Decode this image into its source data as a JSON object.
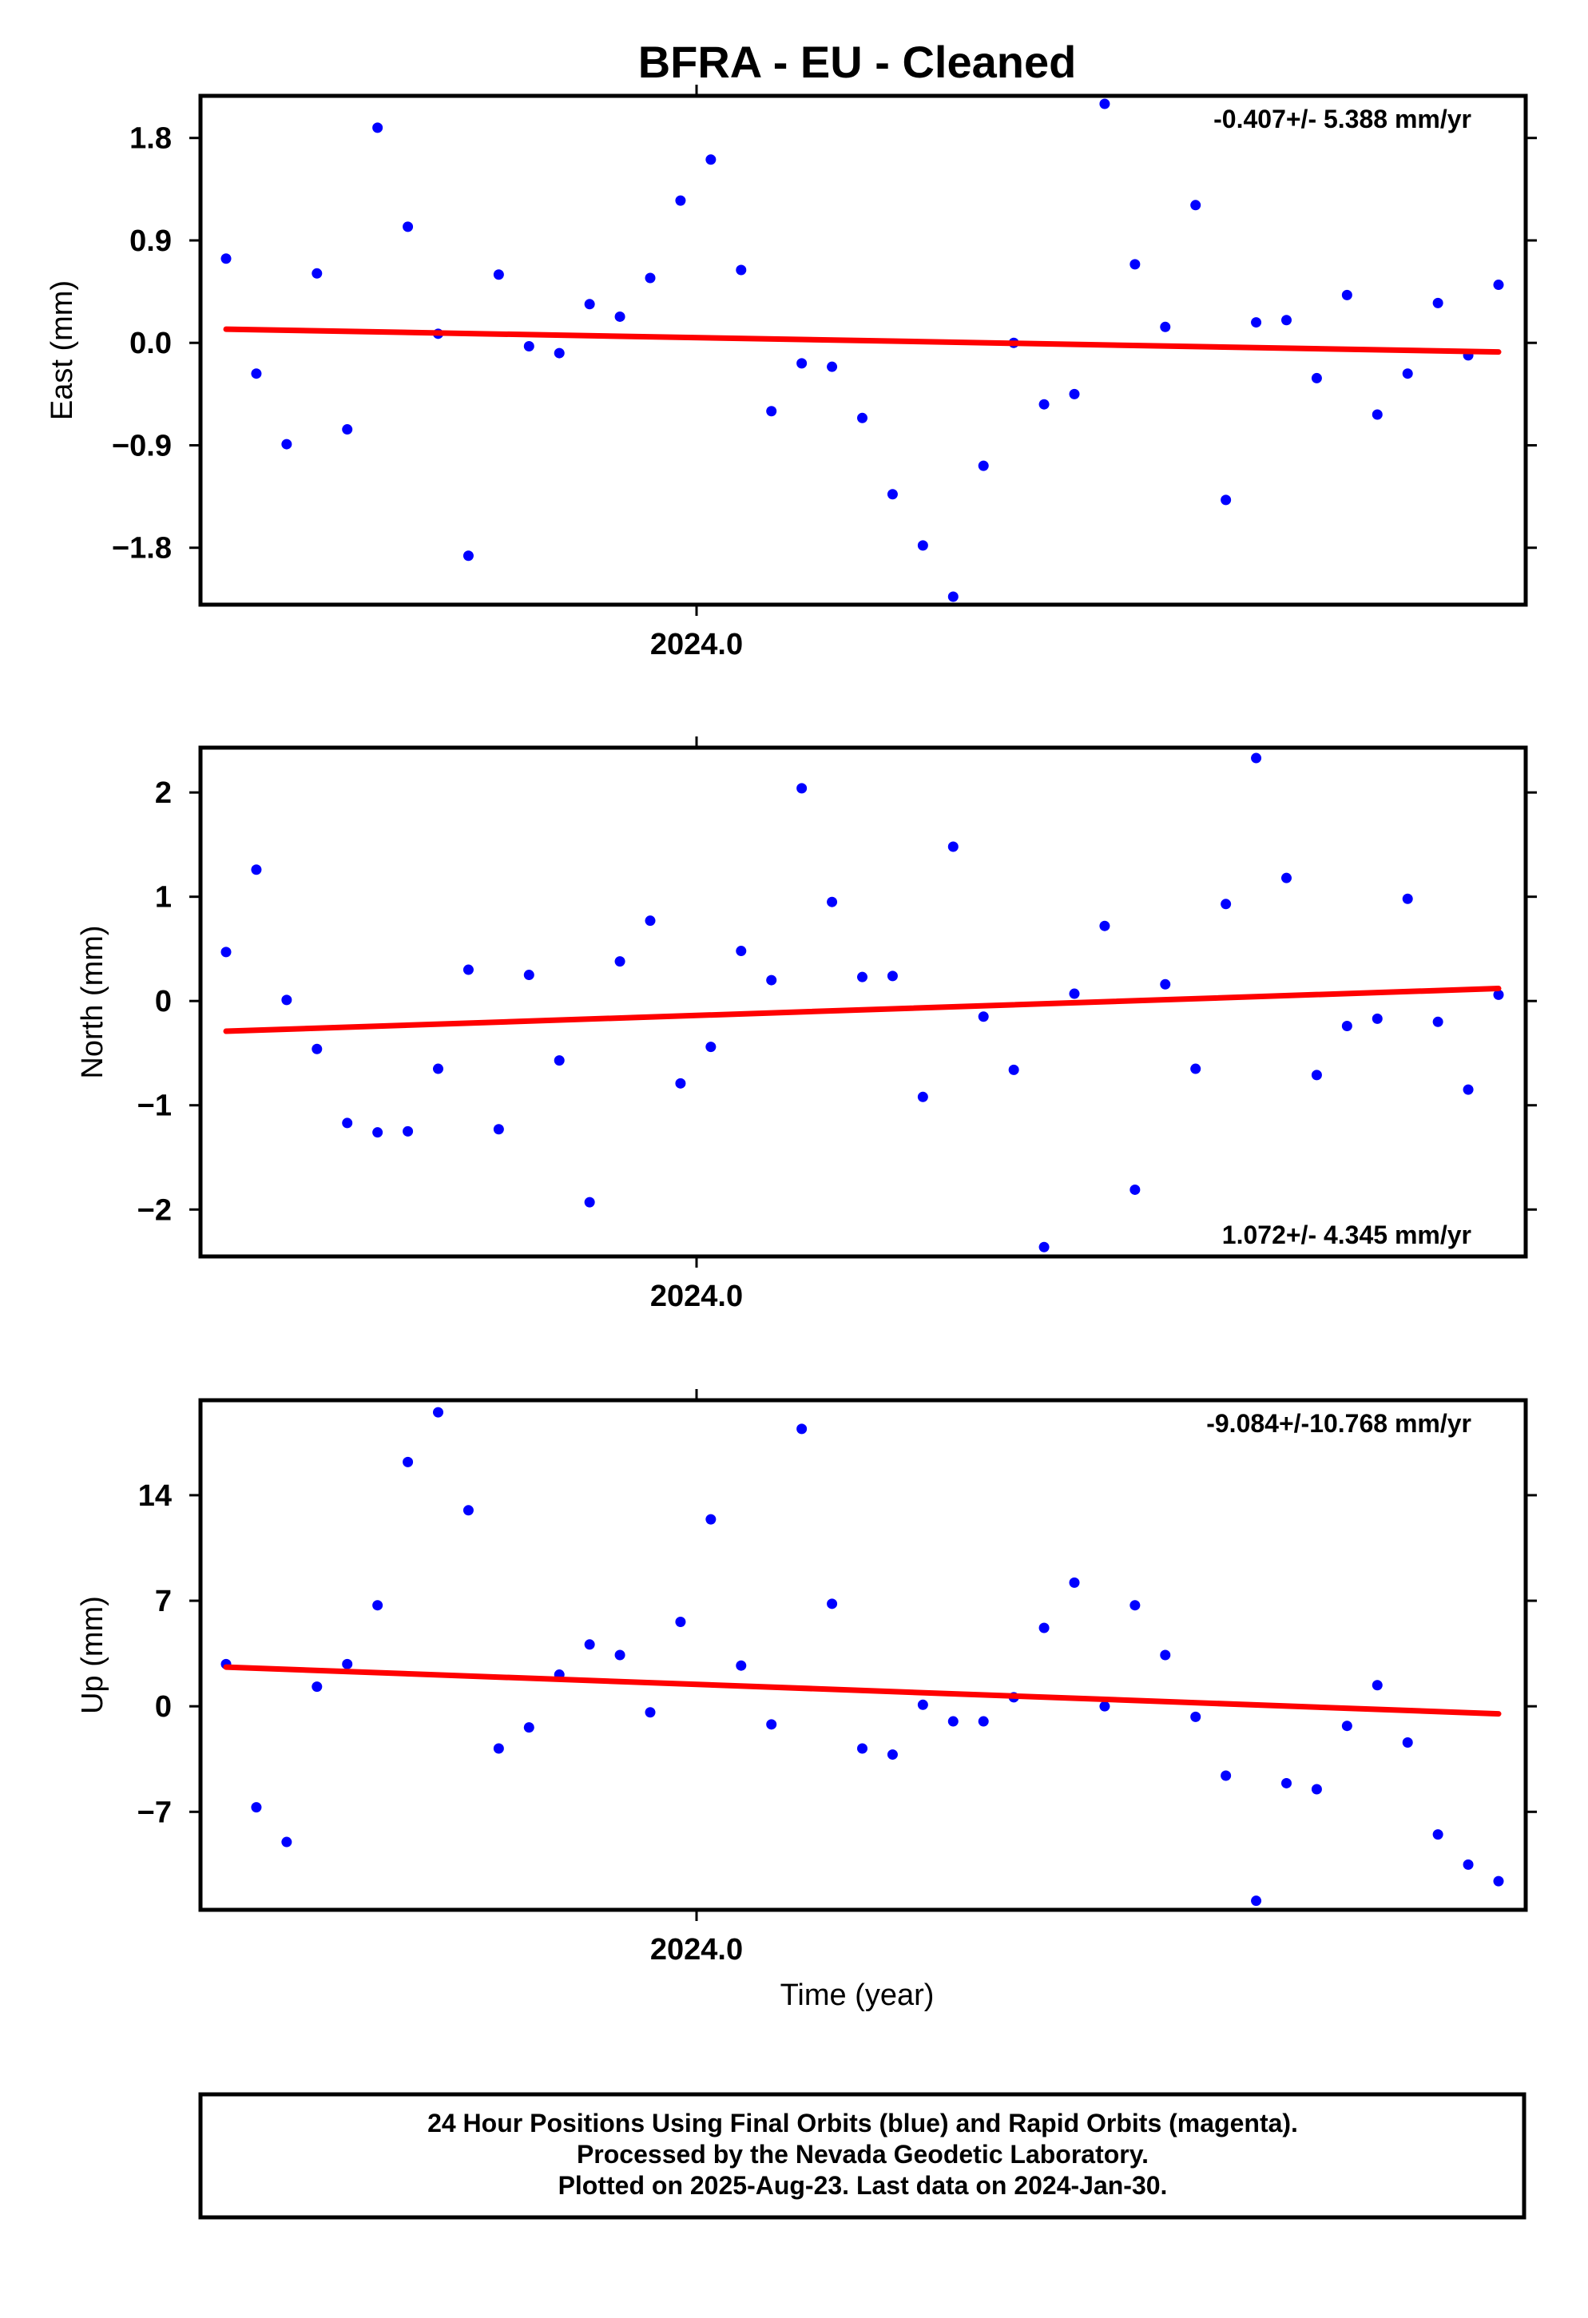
{
  "title": "BFRA  - EU - Cleaned",
  "colors": {
    "points": "#0000ff",
    "trend": "#ff0000",
    "frame": "#000000"
  },
  "footer": {
    "lines": [
      "24 Hour Positions Using Final Orbits (blue) and Rapid Orbits (magenta).",
      "Processed by the Nevada Geodetic Laboratory.",
      "Plotted on 2025-Aug-23. Last data on 2024-Jan-30."
    ]
  },
  "chart_data": [
    {
      "type": "scatter",
      "ylabel": "East (mm)",
      "xtick_label": "2024.0",
      "yticks": [
        -1.8,
        -0.9,
        0.0,
        0.9,
        1.8
      ],
      "ytick_labels": [
        "−1.8",
        "−0.9",
        "0.0",
        "0.9",
        "1.8"
      ],
      "ylim": [
        -2.3,
        2.17
      ],
      "rate": "-0.407+/- 5.388 mm/yr",
      "rate_position": "top-right",
      "trend": {
        "y_start": 0.12,
        "y_end": -0.08
      },
      "values": [
        0.74,
        -0.27,
        -0.89,
        0.61,
        -0.76,
        1.89,
        1.02,
        0.08,
        -1.87,
        0.6,
        -0.03,
        -0.09,
        0.34,
        0.23,
        0.57,
        1.25,
        1.61,
        0.64,
        -0.6,
        -0.18,
        -0.21,
        -0.66,
        -1.33,
        -1.78,
        -2.23,
        -1.08,
        0.0,
        -0.54,
        -0.45,
        2.1,
        0.69,
        0.14,
        1.21,
        -1.38,
        0.18,
        0.2,
        -0.31,
        0.42,
        -0.63,
        -0.27,
        0.35,
        -0.11,
        0.51
      ]
    },
    {
      "type": "scatter",
      "ylabel": "North (mm)",
      "xtick_label": "2024.0",
      "yticks": [
        -2,
        -1,
        0,
        1,
        2
      ],
      "ytick_labels": [
        "−2",
        "−1",
        "0",
        "1",
        "2"
      ],
      "ylim": [
        -2.45,
        2.43
      ],
      "rate": "1.072+/- 4.345 mm/yr",
      "rate_position": "bottom-right",
      "trend": {
        "y_start": -0.29,
        "y_end": 0.12
      },
      "values": [
        0.47,
        1.26,
        0.01,
        -0.46,
        -1.17,
        -1.26,
        -1.25,
        -0.65,
        0.3,
        -1.23,
        0.25,
        -0.57,
        -1.93,
        0.38,
        0.77,
        -0.79,
        -0.44,
        0.48,
        0.2,
        2.04,
        0.95,
        0.23,
        0.24,
        -0.92,
        1.48,
        -0.15,
        -0.66,
        -2.36,
        0.07,
        0.72,
        -1.81,
        0.16,
        -0.65,
        0.93,
        2.33,
        1.18,
        -0.71,
        -0.24,
        -0.17,
        0.98,
        -0.2,
        -0.85,
        0.06
      ]
    },
    {
      "type": "scatter",
      "xlabel": "Time (year)",
      "ylabel": "Up (mm)",
      "xtick_label": "2024.0",
      "yticks": [
        -7,
        0,
        7,
        14
      ],
      "ytick_labels": [
        "−7",
        "0",
        "7",
        "14"
      ],
      "ylim": [
        -13.5,
        20.3
      ],
      "rate": "-9.084+/-10.768 mm/yr",
      "rate_position": "top-right",
      "trend": {
        "y_start": 2.6,
        "y_end": -0.5
      },
      "values": [
        2.8,
        -6.7,
        -9.0,
        1.3,
        2.8,
        6.7,
        16.2,
        19.5,
        13.0,
        -2.8,
        -1.4,
        2.1,
        4.1,
        3.4,
        -0.4,
        5.6,
        12.4,
        2.7,
        -1.2,
        18.4,
        6.8,
        -2.8,
        -3.2,
        0.1,
        -1.0,
        -1.0,
        0.6,
        5.2,
        8.2,
        0.0,
        6.7,
        3.4,
        -0.7,
        -4.6,
        -12.9,
        -5.1,
        -5.5,
        -1.3,
        1.4,
        -2.4,
        -8.5,
        -10.5,
        -11.6
      ]
    }
  ]
}
